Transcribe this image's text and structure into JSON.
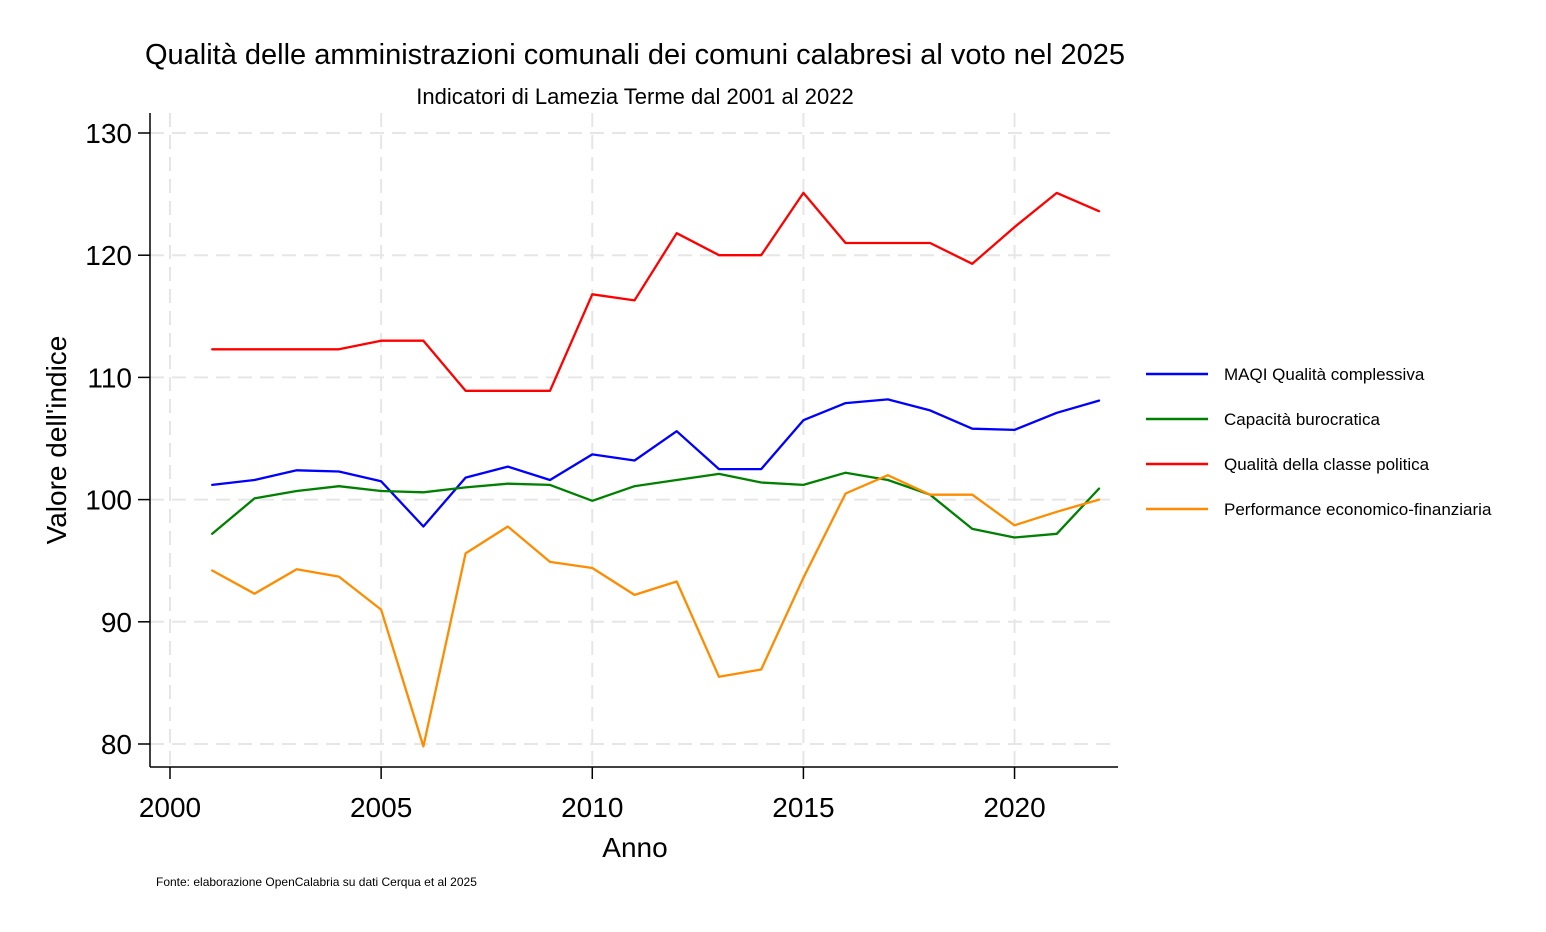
{
  "chart_data": {
    "type": "line",
    "title": "Qualità delle amministrazioni comunali dei comuni calabresi al voto nel 2025",
    "subtitle": "Indicatori di Lamezia Terme dal 2001 al 2022",
    "xlabel": "Anno",
    "ylabel": "Valore dell'indice",
    "source_note": "Fonte: elaborazione OpenCalabria su dati Cerqua et al 2025",
    "xlim": [
      2000,
      2022
    ],
    "ylim": [
      78,
      132
    ],
    "x_ticks": [
      2000,
      2005,
      2010,
      2015,
      2020
    ],
    "y_ticks": [
      80,
      90,
      100,
      110,
      120,
      130
    ],
    "grid": true,
    "legend_position": "right",
    "x": [
      2001,
      2002,
      2003,
      2004,
      2005,
      2006,
      2007,
      2008,
      2009,
      2010,
      2011,
      2012,
      2013,
      2014,
      2015,
      2016,
      2017,
      2018,
      2019,
      2020,
      2021,
      2022
    ],
    "series": [
      {
        "name": "MAQI Qualità complessiva",
        "color": "#0000ff",
        "values": [
          101.2,
          101.6,
          102.4,
          102.3,
          101.5,
          97.8,
          101.8,
          102.7,
          101.6,
          103.7,
          103.2,
          105.6,
          102.5,
          102.5,
          106.5,
          107.9,
          108.2,
          107.3,
          105.8,
          105.7,
          107.1,
          108.1
        ]
      },
      {
        "name": "Capacità burocratica",
        "color": "#008000",
        "values": [
          97.2,
          100.1,
          100.7,
          101.1,
          100.7,
          100.6,
          101.0,
          101.3,
          101.2,
          99.9,
          101.1,
          101.6,
          102.1,
          101.4,
          101.2,
          102.2,
          101.6,
          100.4,
          97.6,
          96.9,
          97.2,
          100.9
        ]
      },
      {
        "name": "Qualità della classe politica",
        "color": "#ff0000",
        "values": [
          112.3,
          112.3,
          112.3,
          112.3,
          113.0,
          113.0,
          108.9,
          108.9,
          108.9,
          116.8,
          116.3,
          121.8,
          120.0,
          120.0,
          125.1,
          121.0,
          121.0,
          121.0,
          119.3,
          122.3,
          125.1,
          123.6
        ]
      },
      {
        "name": "Performance economico-finanziaria",
        "color": "#ff8c00",
        "values": [
          94.2,
          92.3,
          94.3,
          93.7,
          91.0,
          79.8,
          95.6,
          97.8,
          94.9,
          94.4,
          92.2,
          93.3,
          85.5,
          86.1,
          93.6,
          100.5,
          102.0,
          100.4,
          100.4,
          97.9,
          99.0,
          100.0
        ]
      }
    ]
  }
}
